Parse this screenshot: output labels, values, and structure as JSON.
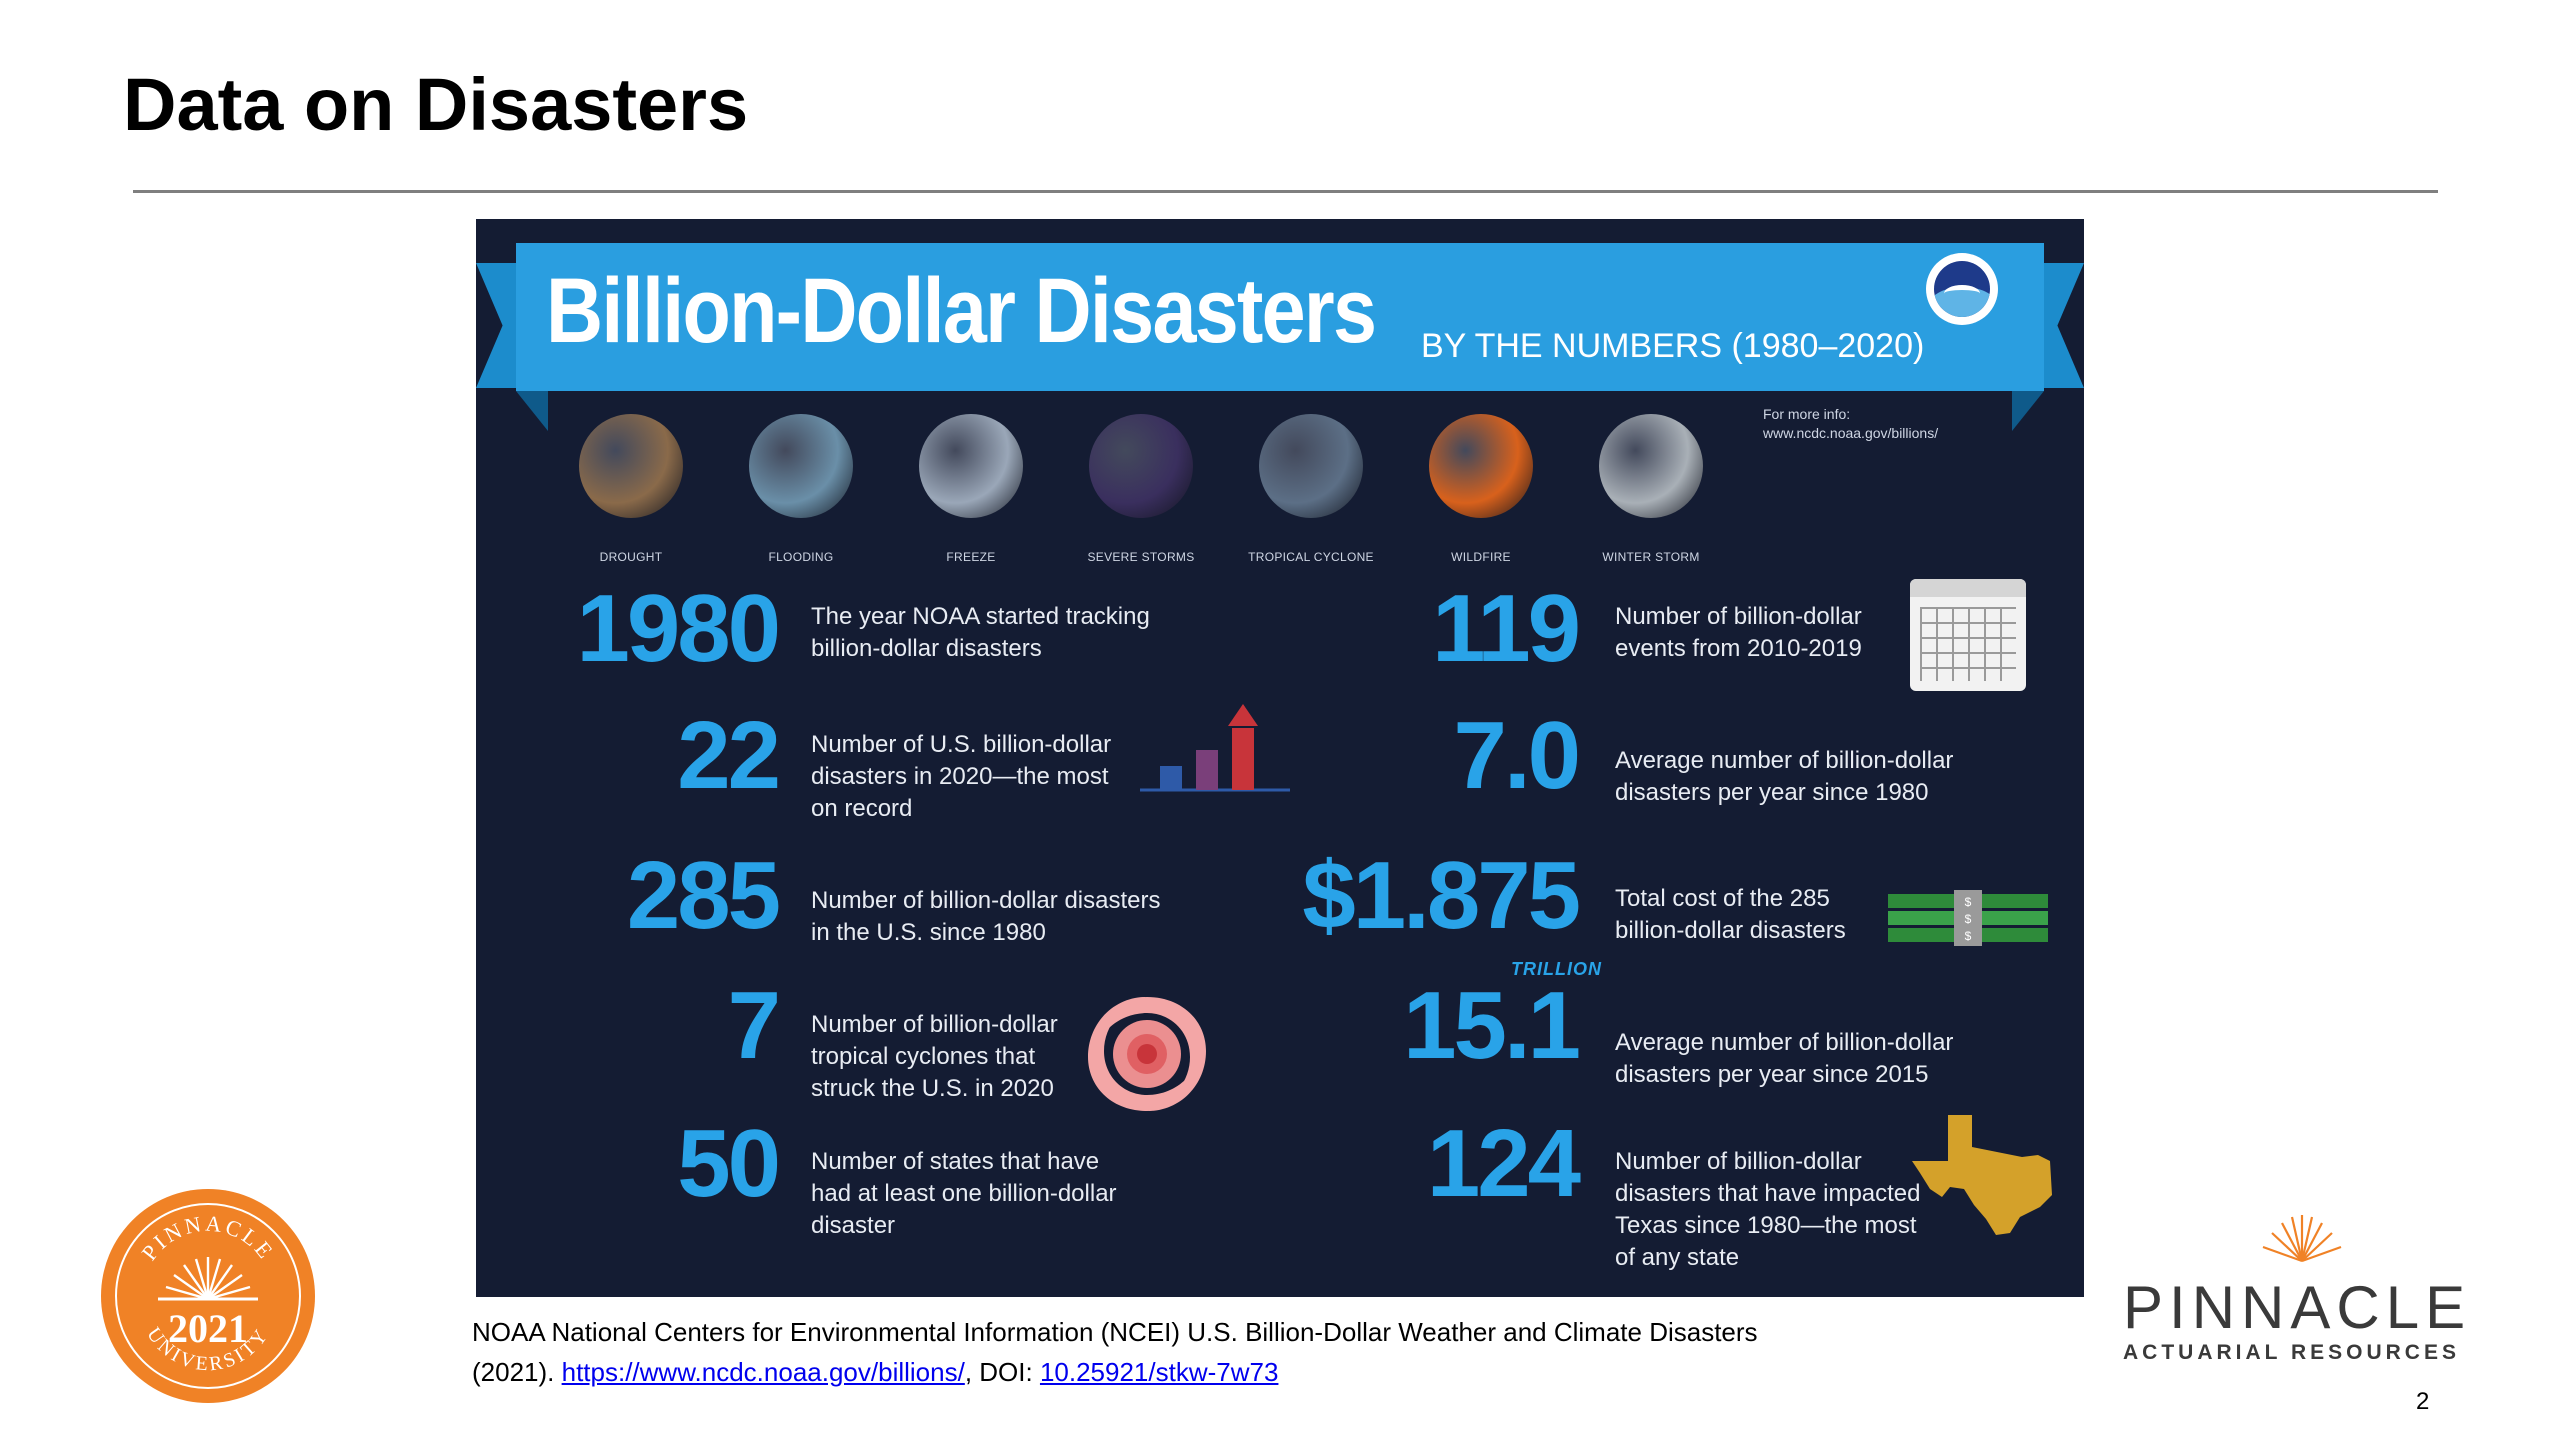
{
  "slide": {
    "title": "Data on Disasters",
    "page_number": "2"
  },
  "infographic": {
    "title": "Billion-Dollar Disasters",
    "subtitle": "BY THE NUMBERS (1980–2020)",
    "more_info_label": "For more info:",
    "more_info_url": "www.ncdc.noaa.gov/billions/",
    "noaa_logo_text": "NOAA",
    "hazards": [
      {
        "label": "DROUGHT",
        "color": "#8a6a4a"
      },
      {
        "label": "FLOODING",
        "color": "#6a8fa8"
      },
      {
        "label": "FREEZE",
        "color": "#9aa7b8"
      },
      {
        "label": "SEVERE STORMS",
        "color": "#3a2f5e"
      },
      {
        "label": "TROPICAL CYCLONE",
        "color": "#5c6f86"
      },
      {
        "label": "WILDFIRE",
        "color": "#d8611c"
      },
      {
        "label": "WINTER STORM",
        "color": "#a9b0b7"
      }
    ],
    "stats_left": [
      {
        "number": "1980",
        "desc_lines": [
          "The year NOAA started tracking",
          "billion-dollar disasters"
        ]
      },
      {
        "number": "22",
        "desc_lines": [
          "Number of U.S. billion-dollar",
          "disasters in 2020—the most",
          "on record"
        ]
      },
      {
        "number": "285",
        "desc_lines": [
          "Number of billion-dollar disasters",
          "in the U.S. since 1980"
        ]
      },
      {
        "number": "7",
        "desc_lines": [
          "Number of billion-dollar",
          "tropical cyclones that",
          "struck the U.S. in 2020"
        ]
      },
      {
        "number": "50",
        "desc_lines": [
          "Number of states that have",
          "had at least one billion-dollar",
          "disaster"
        ]
      }
    ],
    "stats_right": [
      {
        "number": "119",
        "desc_lines": [
          "Number of billion-dollar",
          "events from 2010-2019"
        ]
      },
      {
        "number": "7.0",
        "desc_lines": [
          "Average number of billion-dollar",
          "disasters per year since 1980"
        ]
      },
      {
        "number": "$1.875",
        "desc_lines": [
          "Total cost of the 285",
          "billion-dollar disasters"
        ]
      },
      {
        "number": "15.1",
        "desc_lines": [
          "Average number of billion-dollar",
          "disasters per year since 2015"
        ]
      },
      {
        "number": "124",
        "desc_lines": [
          "Number of billion-dollar",
          "disasters that have impacted",
          "Texas since 1980—the most",
          "of any state"
        ]
      }
    ],
    "trillion_label": "TRILLION",
    "money_symbol": "$",
    "colors": {
      "background": "#141c33",
      "ribbon": "#2a9ee0",
      "accent": "#29a3e8",
      "bar_blue": "#2e5aa8",
      "bar_red": "#c8343a",
      "texas": "#d4a12a",
      "money": "#2e8b3a"
    }
  },
  "citation": {
    "line1": "NOAA National Centers for Environmental Information (NCEI) U.S. Billion-Dollar Weather and Climate Disasters",
    "prefix": "(2021). ",
    "url_text": "https://www.ncdc.noaa.gov/billions/",
    "doi_label": ", DOI: ",
    "doi_text": "10.25921/stkw-7w73"
  },
  "seal": {
    "top_text": "PINNACLE",
    "year": "2021",
    "bottom_text": "UNIVERSITY",
    "color": "#f08226"
  },
  "brand": {
    "name": "PINNACLE",
    "subtitle": "ACTUARIAL RESOURCES",
    "sun_color": "#f08226"
  }
}
